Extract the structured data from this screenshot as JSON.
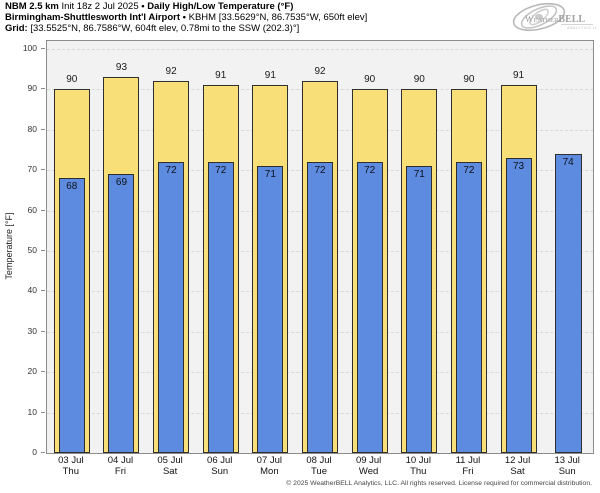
{
  "header": {
    "line1_model": "NBM 2.5 km",
    "line1_init": "Init 18z 2 Jul 2025",
    "sep": "•",
    "line1_title": "Daily High/Low Temperature (°F)",
    "line2_station": "Birmingham-Shuttlesworth Int'l Airport",
    "line2_meta": "KBHM [33.5629°N, 86.7535°W, 650ft elev]",
    "line3_label": "Grid:",
    "line3_meta": "[33.5525°N, 86.7586°W, 604ft elev, 0.78mi to the SSW (202.3)°]"
  },
  "logo": {
    "word_small": "Weather",
    "word_big": "BELL",
    "subtext": "Analytics LLC"
  },
  "chart_data": {
    "type": "bar",
    "title": "Daily High/Low Temperature (°F)",
    "ylabel": "Temperature [°F]",
    "ylim": [
      0,
      102
    ],
    "yticks": [
      0,
      10,
      20,
      30,
      40,
      50,
      60,
      70,
      80,
      90,
      100
    ],
    "grid": "horizontal-dashed",
    "legend_position": "none",
    "categories": [
      {
        "date": "03 Jul",
        "day": "Thu"
      },
      {
        "date": "04 Jul",
        "day": "Fri"
      },
      {
        "date": "05 Jul",
        "day": "Sat"
      },
      {
        "date": "06 Jul",
        "day": "Sun"
      },
      {
        "date": "07 Jul",
        "day": "Mon"
      },
      {
        "date": "08 Jul",
        "day": "Tue"
      },
      {
        "date": "09 Jul",
        "day": "Wed"
      },
      {
        "date": "10 Jul",
        "day": "Thu"
      },
      {
        "date": "11 Jul",
        "day": "Fri"
      },
      {
        "date": "12 Jul",
        "day": "Sat"
      },
      {
        "date": "13 Jul",
        "day": "Sun"
      }
    ],
    "series": [
      {
        "name": "High",
        "color": "#F9DF78",
        "values": [
          90,
          93,
          92,
          91,
          91,
          92,
          90,
          90,
          90,
          91,
          null
        ]
      },
      {
        "name": "Low",
        "color": "#5C8BE0",
        "values": [
          68,
          69,
          72,
          72,
          71,
          72,
          72,
          71,
          72,
          73,
          74
        ]
      }
    ]
  },
  "footer": {
    "copyright": "© 2025 WeatherBELL Analytics, LLC. All rights reserved. License required for commercial distribution."
  },
  "colors": {
    "high_bar": "#F9DF78",
    "low_bar": "#5C8BE0",
    "bar_border": "#2f2f2f",
    "plot_bg": "#f2f2f2",
    "grid": "#d8d8d8",
    "frame": "#8c8c8c"
  }
}
